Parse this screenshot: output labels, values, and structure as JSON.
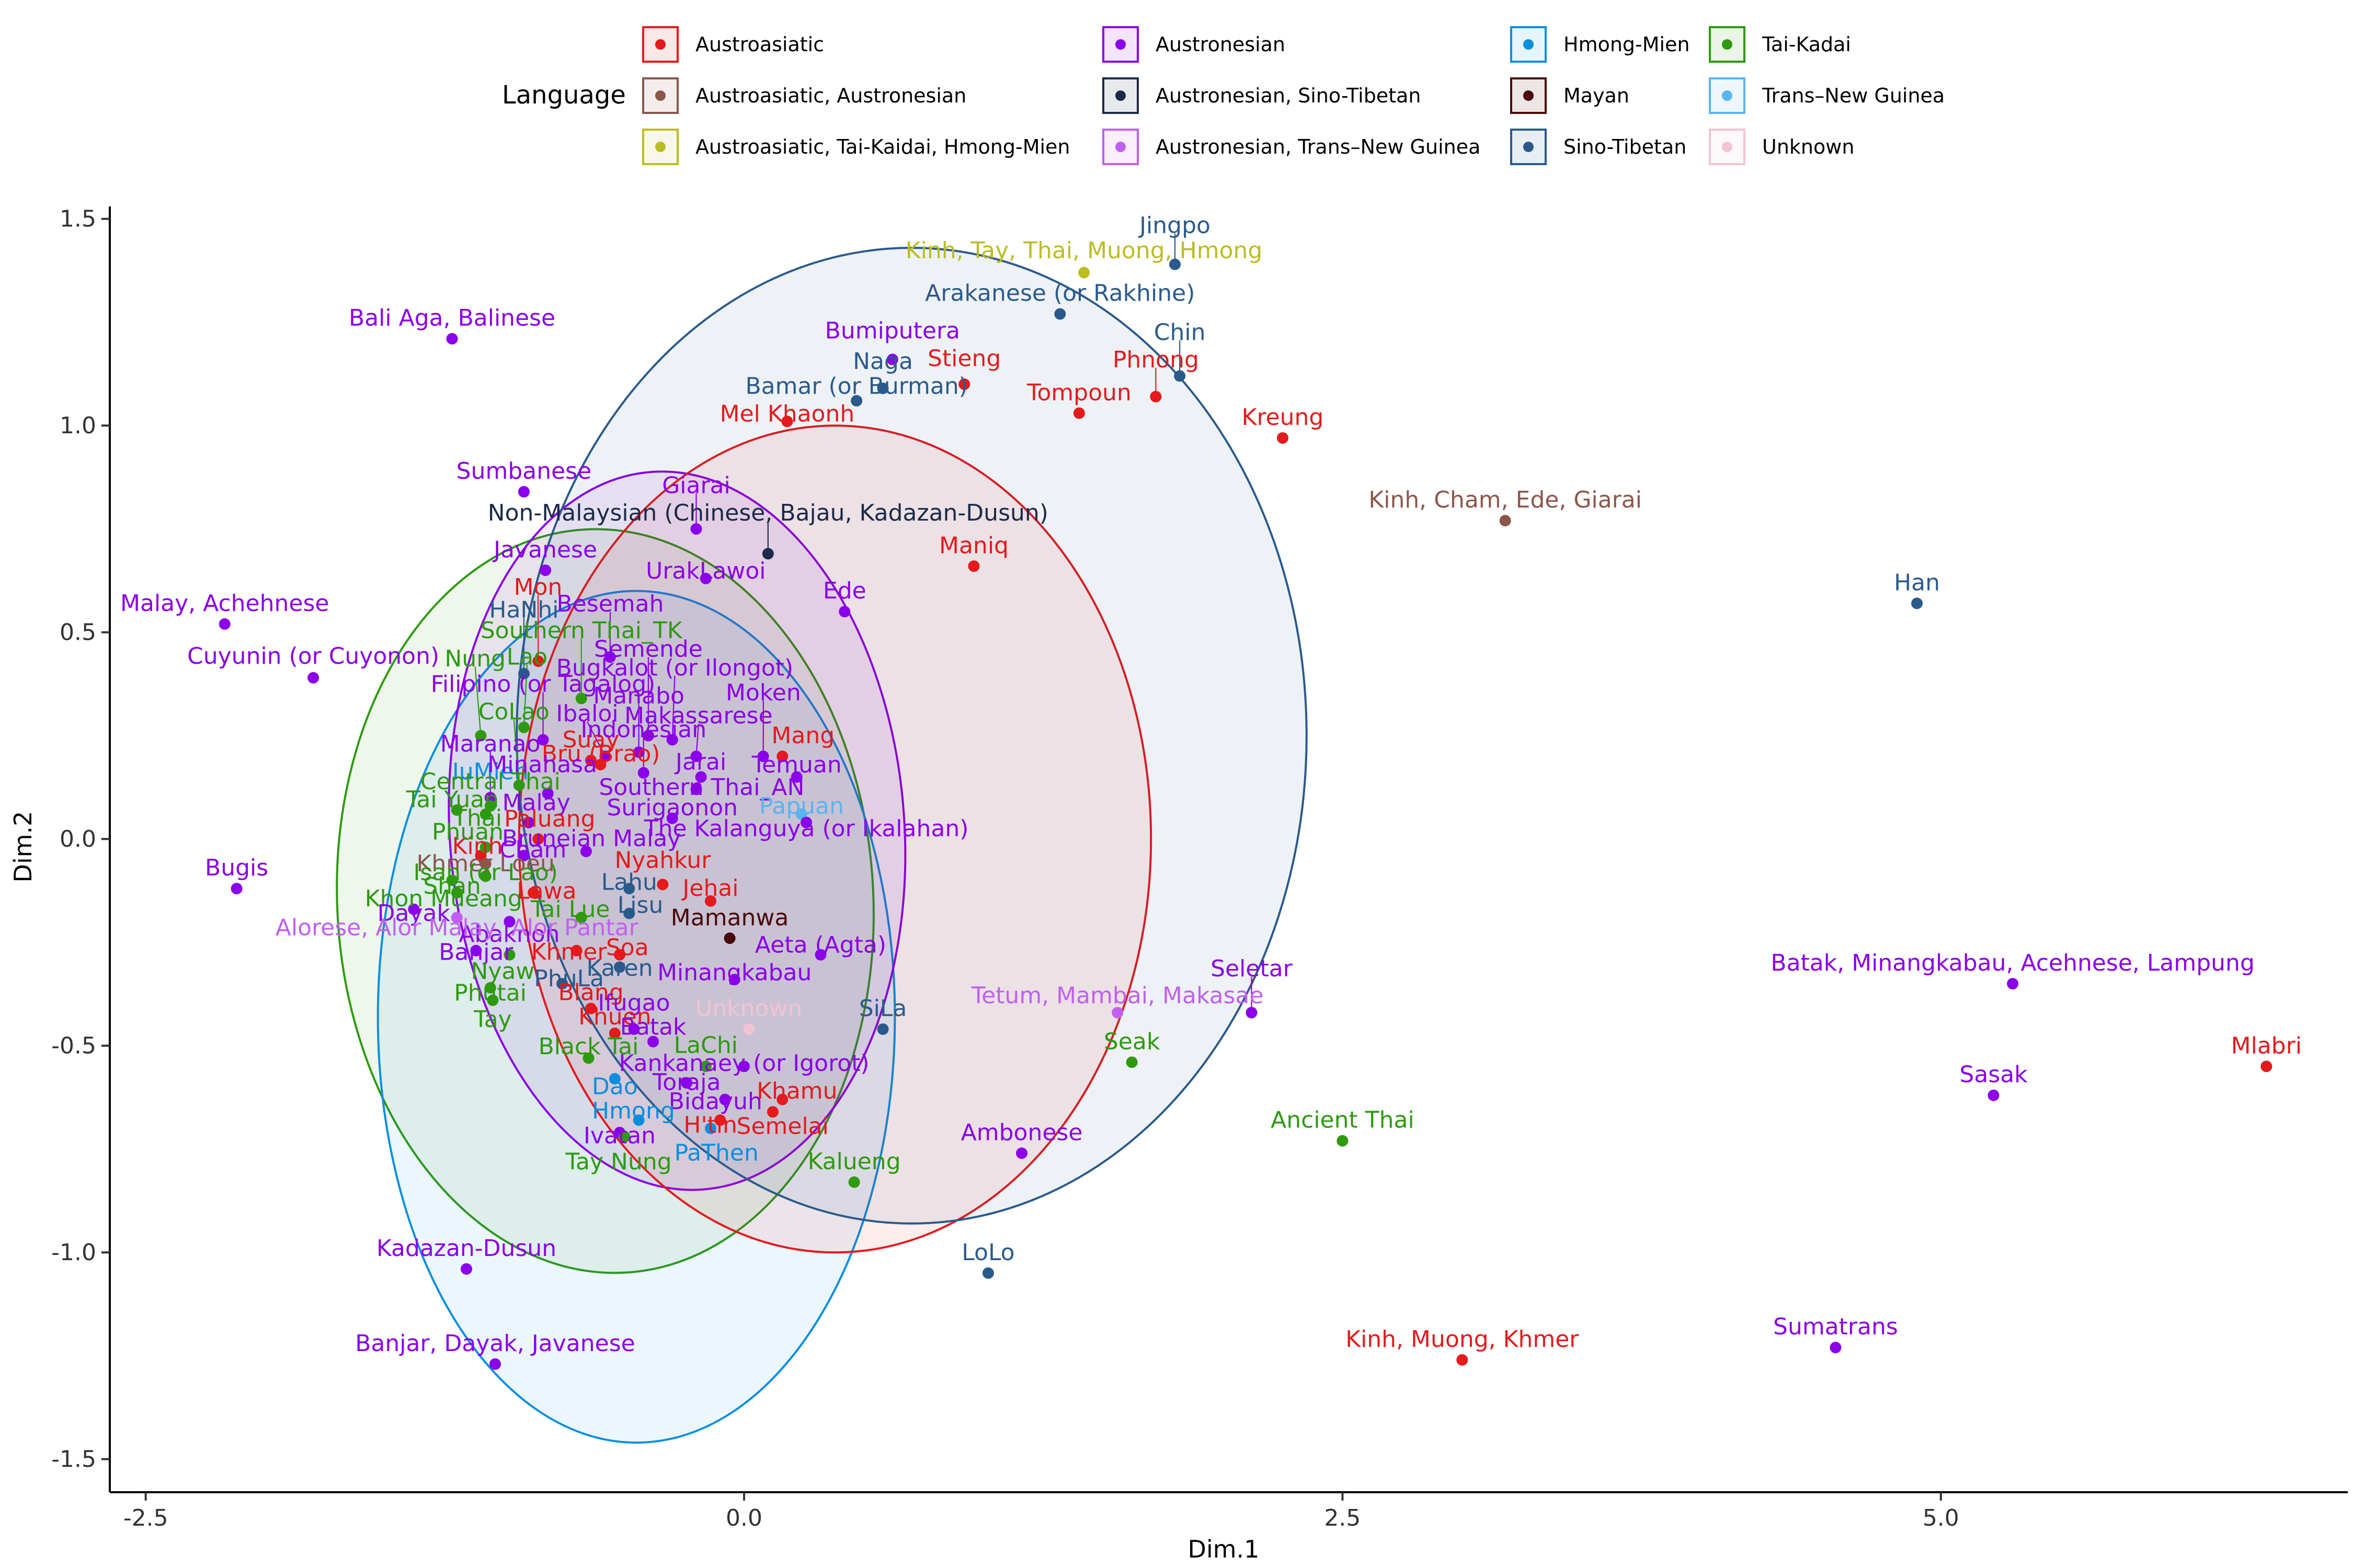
{
  "chart_data": {
    "type": "scatter",
    "title": "",
    "xlabel": "Dim.1",
    "ylabel": "Dim.2",
    "xlim": [
      -2.65,
      6.7
    ],
    "ylim": [
      -1.58,
      1.53
    ],
    "xticks": [
      -2.5,
      0.0,
      2.5,
      5.0
    ],
    "yticks": [
      -1.5,
      -1.0,
      -0.5,
      0.0,
      0.5,
      1.0,
      1.5
    ],
    "grid": false,
    "legend": {
      "title": "Language",
      "placement": "top",
      "entries": [
        {
          "group": "Austroasiatic",
          "color": "#E41A1C"
        },
        {
          "group": "Austroasiatic, Austronesian",
          "color": "#8C564B"
        },
        {
          "group": "Austroasiatic, Tai-Kaidai, Hmong-Mien",
          "color": "#BCBD22"
        },
        {
          "group": "Austronesian",
          "color": "#8B00E8"
        },
        {
          "group": "Austronesian, Sino-Tibetan",
          "color": "#1B2A4A"
        },
        {
          "group": "Austronesian, Trans–New Guinea",
          "color": "#C060F0"
        },
        {
          "group": "Hmong-Mien",
          "color": "#0A8FE0"
        },
        {
          "group": "Mayan",
          "color": "#4A0A0A"
        },
        {
          "group": "Sino-Tibetan",
          "color": "#2A5A8C"
        },
        {
          "group": "Tai-Kadai",
          "color": "#2E9A10"
        },
        {
          "group": "Trans–New Guinea",
          "color": "#5AB4F0"
        },
        {
          "group": "Unknown",
          "color": "#F2C4D2"
        }
      ]
    },
    "ellipses": [
      {
        "group": "Tai-Kadai",
        "cx": -0.58,
        "cy": -0.15,
        "rx": 1.12,
        "ry": 0.9,
        "angle": -3
      },
      {
        "group": "Hmong-Mien",
        "cx": -0.45,
        "cy": -0.43,
        "rx": 1.08,
        "ry": 1.03,
        "angle": 0
      },
      {
        "group": "Austronesian",
        "cx": -0.28,
        "cy": 0.02,
        "rx": 0.95,
        "ry": 0.87,
        "angle": -4
      },
      {
        "group": "Austroasiatic",
        "cx": 0.38,
        "cy": 0.0,
        "rx": 1.32,
        "ry": 1.0,
        "angle": 0
      },
      {
        "group": "Sino-Tibetan",
        "cx": 0.7,
        "cy": 0.25,
        "rx": 1.65,
        "ry": 1.18,
        "angle": 0
      }
    ],
    "points": [
      {
        "label": "Jingpo",
        "group": "Sino-Tibetan",
        "x": 1.8,
        "y": 1.39
      },
      {
        "label": "Kinh, Tay, Thai, Muong, Hmong",
        "group": "Austroasiatic, Tai-Kaidai, Hmong-Mien",
        "x": 1.42,
        "y": 1.37
      },
      {
        "label": "Arakanese (or Rakhine)",
        "group": "Sino-Tibetan",
        "x": 1.32,
        "y": 1.27
      },
      {
        "label": "Bali Aga, Balinese",
        "group": "Austronesian",
        "x": -1.22,
        "y": 1.21
      },
      {
        "label": "Bumiputera",
        "group": "Austronesian",
        "x": 0.62,
        "y": 1.16
      },
      {
        "label": "Naga",
        "group": "Sino-Tibetan",
        "x": 0.58,
        "y": 1.09
      },
      {
        "label": "Chin",
        "group": "Sino-Tibetan",
        "x": 1.82,
        "y": 1.12
      },
      {
        "label": "Bamar (or Burman)",
        "group": "Sino-Tibetan",
        "x": 0.47,
        "y": 1.06
      },
      {
        "label": "Stieng",
        "group": "Austroasiatic",
        "x": 0.92,
        "y": 1.1
      },
      {
        "label": "Phnong",
        "group": "Austroasiatic",
        "x": 1.72,
        "y": 1.07
      },
      {
        "label": "Tompoun",
        "group": "Austroasiatic",
        "x": 1.4,
        "y": 1.03
      },
      {
        "label": "Kreung",
        "group": "Austroasiatic",
        "x": 2.25,
        "y": 0.97
      },
      {
        "label": "Mel Khaonh",
        "group": "Austroasiatic",
        "x": 0.18,
        "y": 1.01
      },
      {
        "label": "Sumbanese",
        "group": "Austronesian",
        "x": -0.92,
        "y": 0.84
      },
      {
        "label": "Kinh, Cham, Ede, Giarai",
        "group": "Austroasiatic, Austronesian",
        "x": 3.18,
        "y": 0.77
      },
      {
        "label": "Giarai",
        "group": "Austronesian",
        "x": -0.2,
        "y": 0.75
      },
      {
        "label": "Non-Malaysian (Chinese, Bajau, Kadazan-Dusun)",
        "group": "Austronesian, Sino-Tibetan",
        "x": 0.1,
        "y": 0.69
      },
      {
        "label": "Maniq",
        "group": "Austroasiatic",
        "x": 0.96,
        "y": 0.66
      },
      {
        "label": "Han",
        "group": "Sino-Tibetan",
        "x": 4.9,
        "y": 0.57
      },
      {
        "label": "UrakLawoi",
        "group": "Austronesian",
        "x": -0.16,
        "y": 0.63
      },
      {
        "label": "Javanese",
        "group": "Austronesian",
        "x": -0.83,
        "y": 0.65
      },
      {
        "label": "Malay, Achehnese",
        "group": "Austronesian",
        "x": -2.17,
        "y": 0.52
      },
      {
        "label": "Ede",
        "group": "Austronesian",
        "x": 0.42,
        "y": 0.55
      },
      {
        "label": "Mon",
        "group": "Austroasiatic",
        "x": -0.86,
        "y": 0.43
      },
      {
        "label": "Southern Thai_TK",
        "group": "Tai-Kadai",
        "x": -0.68,
        "y": 0.34
      },
      {
        "label": "HaNhi",
        "group": "Sino-Tibetan",
        "x": -0.92,
        "y": 0.4
      },
      {
        "label": "Besemah",
        "group": "Austronesian",
        "x": -0.56,
        "y": 0.44
      },
      {
        "label": "Manabo",
        "group": "Austronesian",
        "x": -0.44,
        "y": 0.21
      },
      {
        "label": "Cuyunin (or Cuyonon)",
        "group": "Austronesian",
        "x": -1.8,
        "y": 0.39
      },
      {
        "label": "Suay",
        "group": "Austroasiatic",
        "x": -0.64,
        "y": 0.19
      },
      {
        "label": "Semende",
        "group": "Austronesian",
        "x": -0.4,
        "y": 0.25
      },
      {
        "label": "Nung",
        "group": "Tai-Kadai",
        "x": -1.1,
        "y": 0.25
      },
      {
        "label": "Bugkalot (or Ilongot)",
        "group": "Austronesian",
        "x": -0.3,
        "y": 0.24
      },
      {
        "label": "Lao",
        "group": "Tai-Kadai",
        "x": -0.92,
        "y": 0.27
      },
      {
        "label": "Filipino (or Tagalog)",
        "group": "Austronesian",
        "x": -0.84,
        "y": 0.24
      },
      {
        "label": "Ibaloi",
        "group": "Austronesian",
        "x": -0.58,
        "y": 0.2
      },
      {
        "label": "Makassarese",
        "group": "Austronesian",
        "x": -0.2,
        "y": 0.2
      },
      {
        "label": "IuMien",
        "group": "Hmong-Mien",
        "x": -1.06,
        "y": 0.1
      },
      {
        "label": "Moken",
        "group": "Austronesian",
        "x": 0.08,
        "y": 0.2
      },
      {
        "label": "Bru (Brao)",
        "group": "Austroasiatic",
        "x": -0.6,
        "y": 0.18
      },
      {
        "label": "Mang",
        "group": "Austroasiatic",
        "x": 0.16,
        "y": 0.2
      },
      {
        "label": "Indonesian",
        "group": "Austronesian",
        "x": -0.42,
        "y": 0.16
      },
      {
        "label": "CoLao",
        "group": "Tai-Kadai",
        "x": -0.94,
        "y": 0.13
      },
      {
        "label": "Jarai",
        "group": "Austronesian",
        "x": -0.18,
        "y": 0.15
      },
      {
        "label": "Maranao",
        "group": "Austronesian",
        "x": -1.06,
        "y": 0.1
      },
      {
        "label": "Thai",
        "group": "Tai-Kadai",
        "x": -1.08,
        "y": 0.06
      },
      {
        "label": "Minahasa",
        "group": "Austronesian",
        "x": -0.82,
        "y": 0.11
      },
      {
        "label": "Temuan",
        "group": "Austronesian",
        "x": 0.22,
        "y": 0.15
      },
      {
        "label": "Central Thai",
        "group": "Tai-Kadai",
        "x": -1.06,
        "y": 0.08
      },
      {
        "label": "Southern Thai_AN",
        "group": "Austronesian",
        "x": -0.2,
        "y": 0.12
      },
      {
        "label": "Papuan",
        "group": "Trans–New Guinea",
        "x": 0.24,
        "y": 0.06
      },
      {
        "label": "Kinh",
        "group": "Austroasiatic",
        "x": -1.1,
        "y": -0.04
      },
      {
        "label": "Tai Yuan",
        "group": "Tai-Kadai",
        "x": -1.2,
        "y": 0.07
      },
      {
        "label": "Malay",
        "group": "Austronesian",
        "x": -0.9,
        "y": 0.04
      },
      {
        "label": "Paluang",
        "group": "Austroasiatic",
        "x": -0.86,
        "y": 0.0
      },
      {
        "label": "Surigaonon",
        "group": "Austronesian",
        "x": -0.3,
        "y": 0.05
      },
      {
        "label": "The Kalanguya (or Ikalahan)",
        "group": "Austronesian",
        "x": 0.26,
        "y": 0.04
      },
      {
        "label": "Phuan",
        "group": "Tai-Kadai",
        "x": -1.08,
        "y": -0.02
      },
      {
        "label": "Khmer Loeu",
        "group": "Austroasiatic, Austronesian",
        "x": -1.08,
        "y": -0.06
      },
      {
        "label": "Bruneian Malay",
        "group": "Austronesian",
        "x": -0.66,
        "y": -0.03
      },
      {
        "label": "Cham",
        "group": "Austronesian",
        "x": -0.92,
        "y": -0.04
      },
      {
        "label": "Lahu",
        "group": "Sino-Tibetan",
        "x": -0.48,
        "y": -0.12
      },
      {
        "label": "Bugis",
        "group": "Austronesian",
        "x": -2.12,
        "y": -0.12
      },
      {
        "label": "Shan",
        "group": "Tai-Kadai",
        "x": -1.22,
        "y": -0.1
      },
      {
        "label": "Isan (or Lao)",
        "group": "Tai-Kadai",
        "x": -1.08,
        "y": -0.09
      },
      {
        "label": "Lisu",
        "group": "Sino-Tibetan",
        "x": -0.48,
        "y": -0.18
      },
      {
        "label": "Jehai",
        "group": "Austroasiatic",
        "x": -0.14,
        "y": -0.15
      },
      {
        "label": "Nyahkur",
        "group": "Austroasiatic",
        "x": -0.34,
        "y": -0.11
      },
      {
        "label": "Khon Mueang",
        "group": "Tai-Kadai",
        "x": -1.2,
        "y": -0.13
      },
      {
        "label": "Lawa",
        "group": "Austroasiatic",
        "x": -0.88,
        "y": -0.13
      },
      {
        "label": "Dayak",
        "group": "Austronesian",
        "x": -1.38,
        "y": -0.17
      },
      {
        "label": "Abaknon",
        "group": "Austronesian",
        "x": -0.98,
        "y": -0.2
      },
      {
        "label": "Mamanwa",
        "group": "Mayan",
        "x": -0.06,
        "y": -0.24
      },
      {
        "label": "Alorese, Alor Malay, Alor Pantar",
        "group": "Austronesian, Trans–New Guinea",
        "x": -1.2,
        "y": -0.19
      },
      {
        "label": "Aeta (Agta)",
        "group": "Austronesian",
        "x": 0.32,
        "y": -0.28
      },
      {
        "label": "Tai Lue",
        "group": "Tai-Kadai",
        "x": -0.68,
        "y": -0.19
      },
      {
        "label": "Banjar",
        "group": "Austronesian",
        "x": -1.12,
        "y": -0.27
      },
      {
        "label": "Nyaw",
        "group": "Tai-Kadai",
        "x": -0.98,
        "y": -0.28
      },
      {
        "label": "Soa",
        "group": "Austroasiatic",
        "x": -0.52,
        "y": -0.28
      },
      {
        "label": "Karen",
        "group": "Sino-Tibetan",
        "x": -0.52,
        "y": -0.31
      },
      {
        "label": "Khmer",
        "group": "Austroasiatic",
        "x": -0.7,
        "y": -0.27
      },
      {
        "label": "Minangkabau",
        "group": "Austronesian",
        "x": -0.04,
        "y": -0.34
      },
      {
        "label": "Phutai",
        "group": "Tai-Kadai",
        "x": -1.06,
        "y": -0.36
      },
      {
        "label": "PhuLa",
        "group": "Sino-Tibetan",
        "x": -0.76,
        "y": -0.35
      },
      {
        "label": "Tetum, Mambai, Makasae",
        "group": "Austronesian, Trans–New Guinea",
        "x": 1.56,
        "y": -0.42
      },
      {
        "label": "Seletar",
        "group": "Austronesian",
        "x": 2.12,
        "y": -0.42
      },
      {
        "label": "Batak, Minangkabau, Acehnese, Lampung",
        "group": "Austronesian",
        "x": 5.3,
        "y": -0.35
      },
      {
        "label": "Blang",
        "group": "Austroasiatic",
        "x": -0.64,
        "y": -0.41
      },
      {
        "label": "Tay",
        "group": "Tai-Kadai",
        "x": -1.05,
        "y": -0.39
      },
      {
        "label": "Ifugao",
        "group": "Austronesian",
        "x": -0.46,
        "y": -0.46
      },
      {
        "label": "Unknown",
        "group": "Unknown",
        "x": 0.02,
        "y": -0.46
      },
      {
        "label": "SiLa",
        "group": "Sino-Tibetan",
        "x": 0.58,
        "y": -0.46
      },
      {
        "label": "Khuen",
        "group": "Austroasiatic",
        "x": -0.54,
        "y": -0.47
      },
      {
        "label": "Batak",
        "group": "Austronesian",
        "x": -0.38,
        "y": -0.49
      },
      {
        "label": "Black Tai",
        "group": "Tai-Kadai",
        "x": -0.65,
        "y": -0.53
      },
      {
        "label": "Seak",
        "group": "Tai-Kadai",
        "x": 1.62,
        "y": -0.54
      },
      {
        "label": "Kankanaey (or Igorot)",
        "group": "Austronesian",
        "x": 0.0,
        "y": -0.55
      },
      {
        "label": "Mlabri",
        "group": "Austroasiatic",
        "x": 6.36,
        "y": -0.55
      },
      {
        "label": "Toraja",
        "group": "Austronesian",
        "x": -0.24,
        "y": -0.59
      },
      {
        "label": "LaChi",
        "group": "Tai-Kadai",
        "x": -0.16,
        "y": -0.55
      },
      {
        "label": "Dao",
        "group": "Hmong-Mien",
        "x": -0.54,
        "y": -0.58
      },
      {
        "label": "Sasak",
        "group": "Austronesian",
        "x": 5.22,
        "y": -0.62
      },
      {
        "label": "Bidayuh",
        "group": "Austronesian",
        "x": -0.08,
        "y": -0.63
      },
      {
        "label": "Khamu",
        "group": "Austroasiatic",
        "x": 0.16,
        "y": -0.63
      },
      {
        "label": "Semelai",
        "group": "Austroasiatic",
        "x": 0.12,
        "y": -0.66
      },
      {
        "label": "H'tin",
        "group": "Austroasiatic",
        "x": -0.1,
        "y": -0.68
      },
      {
        "label": "Hmong",
        "group": "Hmong-Mien",
        "x": -0.44,
        "y": -0.68
      },
      {
        "label": "PaThen",
        "group": "Hmong-Mien",
        "x": -0.14,
        "y": -0.7
      },
      {
        "label": "Ivatan",
        "group": "Austronesian",
        "x": -0.52,
        "y": -0.71
      },
      {
        "label": "Tay Nung",
        "group": "Tai-Kadai",
        "x": -0.5,
        "y": -0.72
      },
      {
        "label": "Ancient Thai",
        "group": "Tai-Kadai",
        "x": 2.5,
        "y": -0.73
      },
      {
        "label": "Ambonese",
        "group": "Austronesian",
        "x": 1.16,
        "y": -0.76
      },
      {
        "label": "Kalueng",
        "group": "Tai-Kadai",
        "x": 0.46,
        "y": -0.83
      },
      {
        "label": "LoLo",
        "group": "Sino-Tibetan",
        "x": 1.02,
        "y": -1.05
      },
      {
        "label": "Kadazan-Dusun",
        "group": "Austronesian",
        "x": -1.16,
        "y": -1.04
      },
      {
        "label": "Kinh, Muong, Khmer",
        "group": "Austroasiatic",
        "x": 3.0,
        "y": -1.26
      },
      {
        "label": "Sumatrans",
        "group": "Austronesian",
        "x": 4.56,
        "y": -1.23
      },
      {
        "label": "Banjar, Dayak, Javanese",
        "group": "Austronesian",
        "x": -1.04,
        "y": -1.27
      }
    ]
  }
}
